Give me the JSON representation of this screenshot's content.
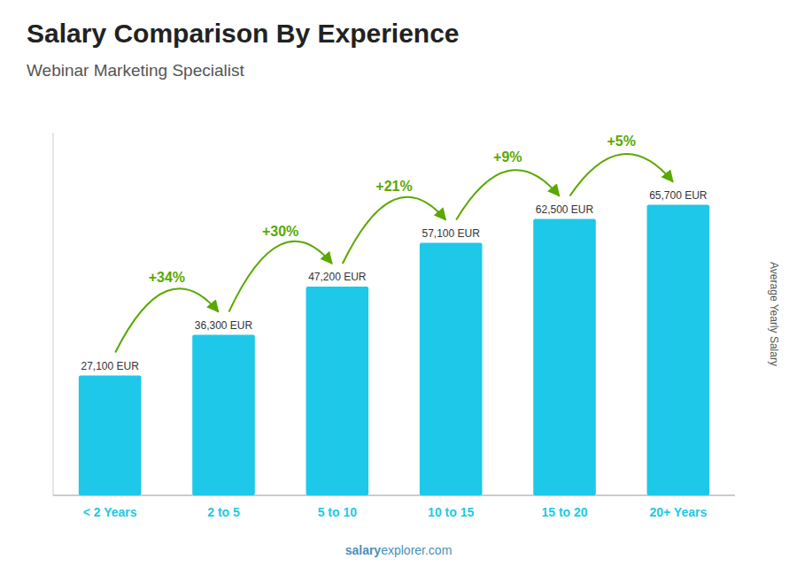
{
  "chart_data": {
    "type": "bar",
    "title": "Salary Comparison By Experience",
    "subtitle": "Webinar Marketing Specialist",
    "ylabel": "Average Yearly Salary",
    "categories": [
      "< 2 Years",
      "2 to 5",
      "5 to 10",
      "10 to 15",
      "15 to 20",
      "20+ Years"
    ],
    "values": [
      27100,
      36300,
      47200,
      57100,
      62500,
      65700
    ],
    "value_labels": [
      "27,100 EUR",
      "36,300 EUR",
      "47,200 EUR",
      "57,100 EUR",
      "62,500 EUR",
      "65,700 EUR"
    ],
    "data_labels": true,
    "color": "#1ec8e8",
    "ylim": [
      0,
      82000
    ],
    "tick_labels": "x",
    "annotations": [
      {
        "text": "+34%",
        "color": "#5aa800"
      },
      {
        "text": "+30%",
        "color": "#5aa800"
      },
      {
        "text": "+21%",
        "color": "#5aa800"
      },
      {
        "text": "+9%",
        "color": "#5aa800"
      },
      {
        "text": "+5%",
        "color": "#5aa800"
      }
    ],
    "watermark": [
      "salary",
      "explorer.com"
    ]
  }
}
